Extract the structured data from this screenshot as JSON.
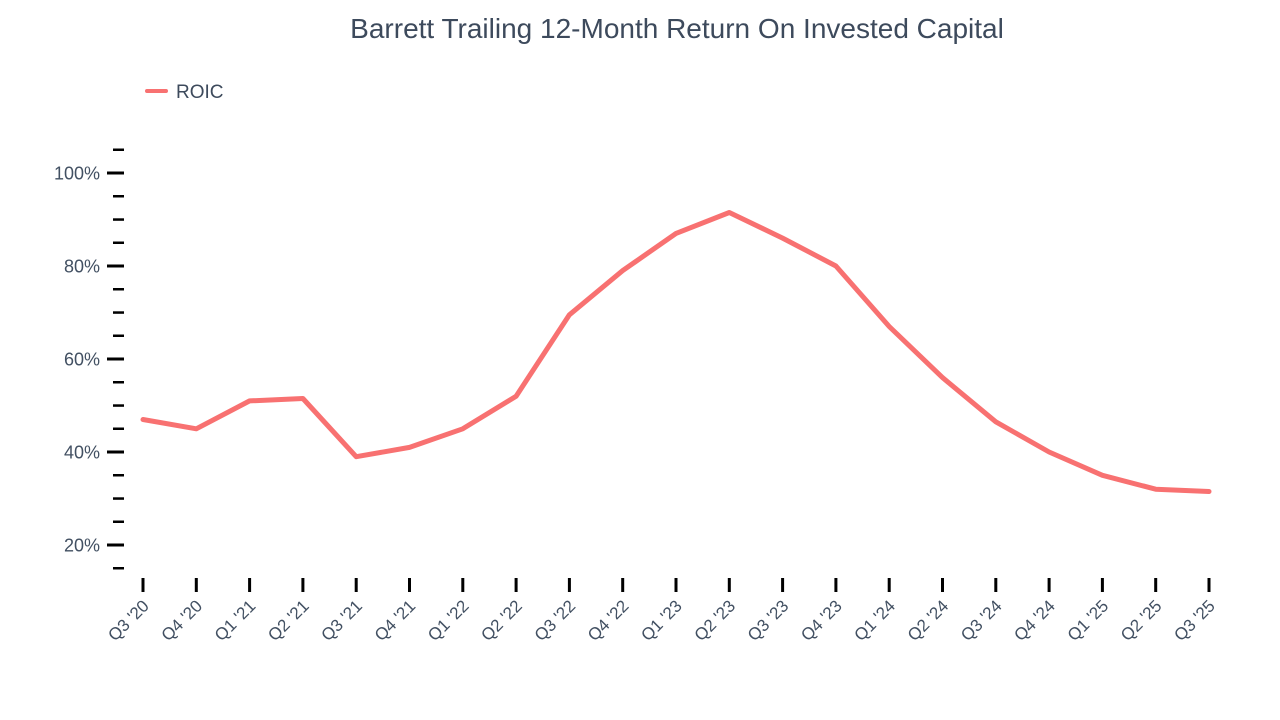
{
  "chart_data": {
    "type": "line",
    "title": "Barrett Trailing 12-Month Return On Invested Capital",
    "categories": [
      "Q3 '20",
      "Q4 '20",
      "Q1 '21",
      "Q2 '21",
      "Q3 '21",
      "Q4 '21",
      "Q1 '22",
      "Q2 '22",
      "Q3 '22",
      "Q4 '22",
      "Q1 '23",
      "Q2 '23",
      "Q3 '23",
      "Q4 '23",
      "Q1 '24",
      "Q2 '24",
      "Q3 '24",
      "Q4 '24",
      "Q1 '25",
      "Q2 '25",
      "Q3 '25"
    ],
    "series": [
      {
        "name": "ROIC",
        "color": "#f87171",
        "values": [
          47,
          45,
          51,
          51.5,
          39,
          41,
          45,
          52,
          69.5,
          79,
          87,
          91.5,
          86,
          80,
          67,
          56,
          46.5,
          40,
          35,
          32,
          31.5
        ]
      }
    ],
    "xlabel": "",
    "ylabel": "",
    "ylim": [
      15,
      105
    ],
    "ytick_major": [
      20,
      40,
      60,
      80,
      100
    ],
    "ytick_minor_step": 5,
    "ytick_suffix": "%",
    "legend_position": "top-left",
    "grid": false
  },
  "colors": {
    "line": "#f87171",
    "title_text": "#3d4a5c",
    "axis_text": "#425062",
    "tick_mark": "#000000",
    "background": "#ffffff"
  }
}
